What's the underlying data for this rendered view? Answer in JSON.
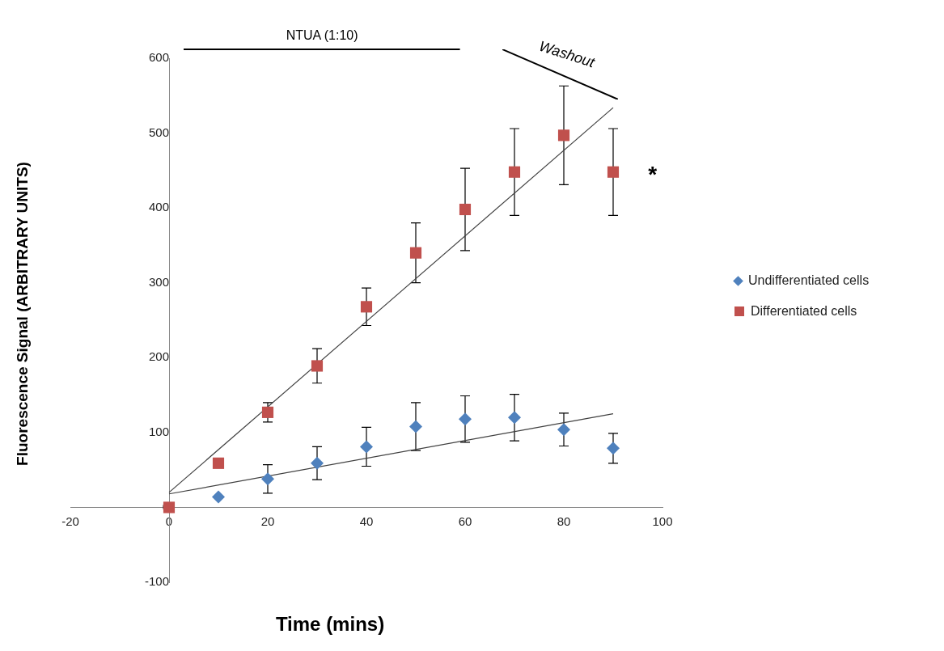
{
  "chart_data": {
    "type": "scatter",
    "xlabel": "Time (mins)",
    "ylabel": "Fluorescence Signal (ARBITRARY UNITS)",
    "xlim": [
      -20,
      100
    ],
    "xticks": [
      -20,
      0,
      20,
      40,
      60,
      80,
      100
    ],
    "ylim": [
      -100,
      600
    ],
    "yticks": [
      -100,
      0,
      100,
      200,
      300,
      400,
      500,
      600
    ],
    "grid": false,
    "legend": "right",
    "annotations": [
      "NTUA (1:10)",
      "Washout",
      "*"
    ],
    "series": [
      {
        "name": "Undifferentiated cells",
        "color": "#4f81bd",
        "marker": "diamond",
        "x": [
          10,
          20,
          30,
          40,
          50,
          60,
          70,
          80,
          90
        ],
        "values": [
          14,
          38,
          59,
          81,
          108,
          118,
          120,
          104,
          79
        ],
        "errors": [
          null,
          19,
          22,
          26,
          32,
          31,
          31,
          22,
          20
        ]
      },
      {
        "name": "Differentiated cells",
        "color": "#c0504d",
        "marker": "square",
        "x": [
          0,
          10,
          20,
          30,
          40,
          50,
          60,
          70,
          80,
          90
        ],
        "values": [
          0,
          59,
          127,
          189,
          268,
          340,
          398,
          448,
          497,
          448
        ],
        "errors": [
          null,
          null,
          13,
          23,
          25,
          40,
          55,
          58,
          66,
          58
        ]
      },
      {
        "type": "line",
        "color": "#404040",
        "marker": "none",
        "x": [
          0,
          90
        ],
        "values": [
          20,
          534
        ]
      },
      {
        "type": "line",
        "color": "#404040",
        "marker": "none",
        "x": [
          0,
          90
        ],
        "values": [
          18,
          125
        ]
      }
    ]
  }
}
